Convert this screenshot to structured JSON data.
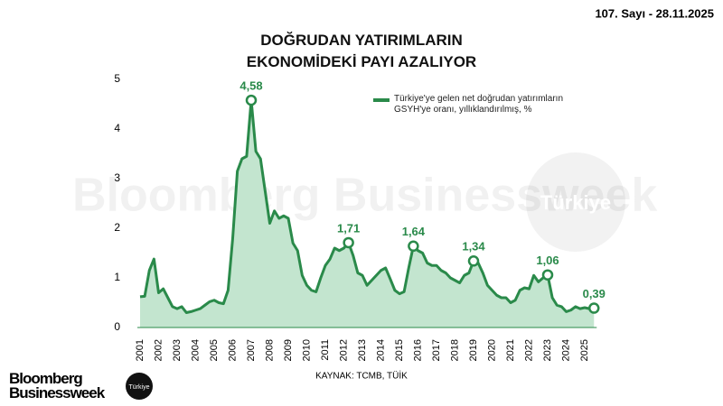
{
  "header": "107. Sayı - 28.11.2025",
  "watermark": {
    "brand": "Bloomberg Businessweek",
    "badge": "Türkiye"
  },
  "logo": {
    "brand": "Bloomberg Businessweek",
    "badge": "Türkiye"
  },
  "chart_data": {
    "type": "line",
    "title": "DOĞRUDAN YATIRIMLARIN EKONOMİDEKİ PAYI AZALIYOR",
    "source": "KAYNAK: TCMB, TÜİK",
    "categories": [
      "2001",
      null,
      null,
      null,
      "2002",
      null,
      null,
      null,
      "2003",
      null,
      null,
      null,
      "2004",
      null,
      null,
      null,
      "2005",
      null,
      null,
      null,
      "2006",
      null,
      null,
      null,
      "2007",
      null,
      null,
      null,
      "2008",
      null,
      null,
      null,
      "2009",
      null,
      null,
      null,
      "2010",
      null,
      null,
      null,
      "2011",
      null,
      null,
      null,
      "2012",
      null,
      null,
      null,
      "2013",
      null,
      null,
      null,
      "2014",
      null,
      null,
      null,
      "2015",
      null,
      null,
      null,
      "2016",
      null,
      null,
      null,
      "2017",
      null,
      null,
      null,
      "2018",
      null,
      null,
      null,
      "2019",
      null,
      null,
      null,
      "2020",
      null,
      null,
      null,
      "2021",
      null,
      null,
      null,
      "2022",
      null,
      null,
      null,
      "2023",
      null,
      null,
      null,
      "2024",
      null,
      null,
      null,
      "2025",
      null,
      null
    ],
    "series": [
      {
        "name": "Türkiye'ye gelen net doğrudan yatırımların GSYH'ye oranı, yıllıklandırılmış, %",
        "color": "#2a8a4a",
        "fill": "#c3e5cf",
        "values": [
          0.62,
          0.63,
          1.15,
          1.38,
          0.7,
          0.78,
          0.6,
          0.42,
          0.38,
          0.42,
          0.3,
          0.32,
          0.35,
          0.38,
          0.45,
          0.52,
          0.55,
          0.5,
          0.48,
          0.75,
          1.8,
          3.15,
          3.4,
          3.45,
          4.58,
          3.55,
          3.4,
          2.75,
          2.1,
          2.35,
          2.2,
          2.25,
          2.2,
          1.7,
          1.55,
          1.05,
          0.85,
          0.75,
          0.72,
          1.0,
          1.25,
          1.38,
          1.6,
          1.55,
          1.6,
          1.71,
          1.45,
          1.1,
          1.05,
          0.85,
          0.95,
          1.05,
          1.15,
          1.2,
          0.98,
          0.75,
          0.68,
          0.72,
          1.2,
          1.64,
          1.55,
          1.5,
          1.3,
          1.25,
          1.25,
          1.15,
          1.1,
          1.0,
          0.95,
          0.9,
          1.05,
          1.1,
          1.34,
          1.3,
          1.1,
          0.85,
          0.75,
          0.65,
          0.6,
          0.6,
          0.5,
          0.55,
          0.75,
          0.8,
          0.78,
          1.05,
          0.92,
          1.0,
          1.06,
          0.6,
          0.45,
          0.42,
          0.32,
          0.35,
          0.42,
          0.38,
          0.4,
          0.38,
          0.39
        ],
        "value_labels": [
          null,
          null,
          null,
          null,
          null,
          null,
          null,
          null,
          null,
          null,
          null,
          null,
          null,
          null,
          null,
          null,
          null,
          null,
          null,
          null,
          null,
          null,
          null,
          null,
          "4,58",
          null,
          null,
          null,
          null,
          null,
          null,
          null,
          null,
          null,
          null,
          null,
          null,
          null,
          null,
          null,
          null,
          null,
          null,
          null,
          null,
          "1,71",
          null,
          null,
          null,
          null,
          null,
          null,
          null,
          null,
          null,
          null,
          null,
          null,
          null,
          "1,64",
          null,
          null,
          null,
          null,
          null,
          null,
          null,
          null,
          null,
          null,
          null,
          null,
          "1,34",
          null,
          null,
          null,
          null,
          null,
          null,
          null,
          null,
          null,
          null,
          null,
          null,
          null,
          null,
          null,
          "1,06",
          null,
          null,
          null,
          null,
          null,
          null,
          null,
          null,
          null,
          "0,39"
        ]
      }
    ],
    "ylim": [
      0,
      5
    ],
    "yticks": [
      0,
      1,
      2,
      3,
      4,
      5
    ],
    "grid": false
  }
}
